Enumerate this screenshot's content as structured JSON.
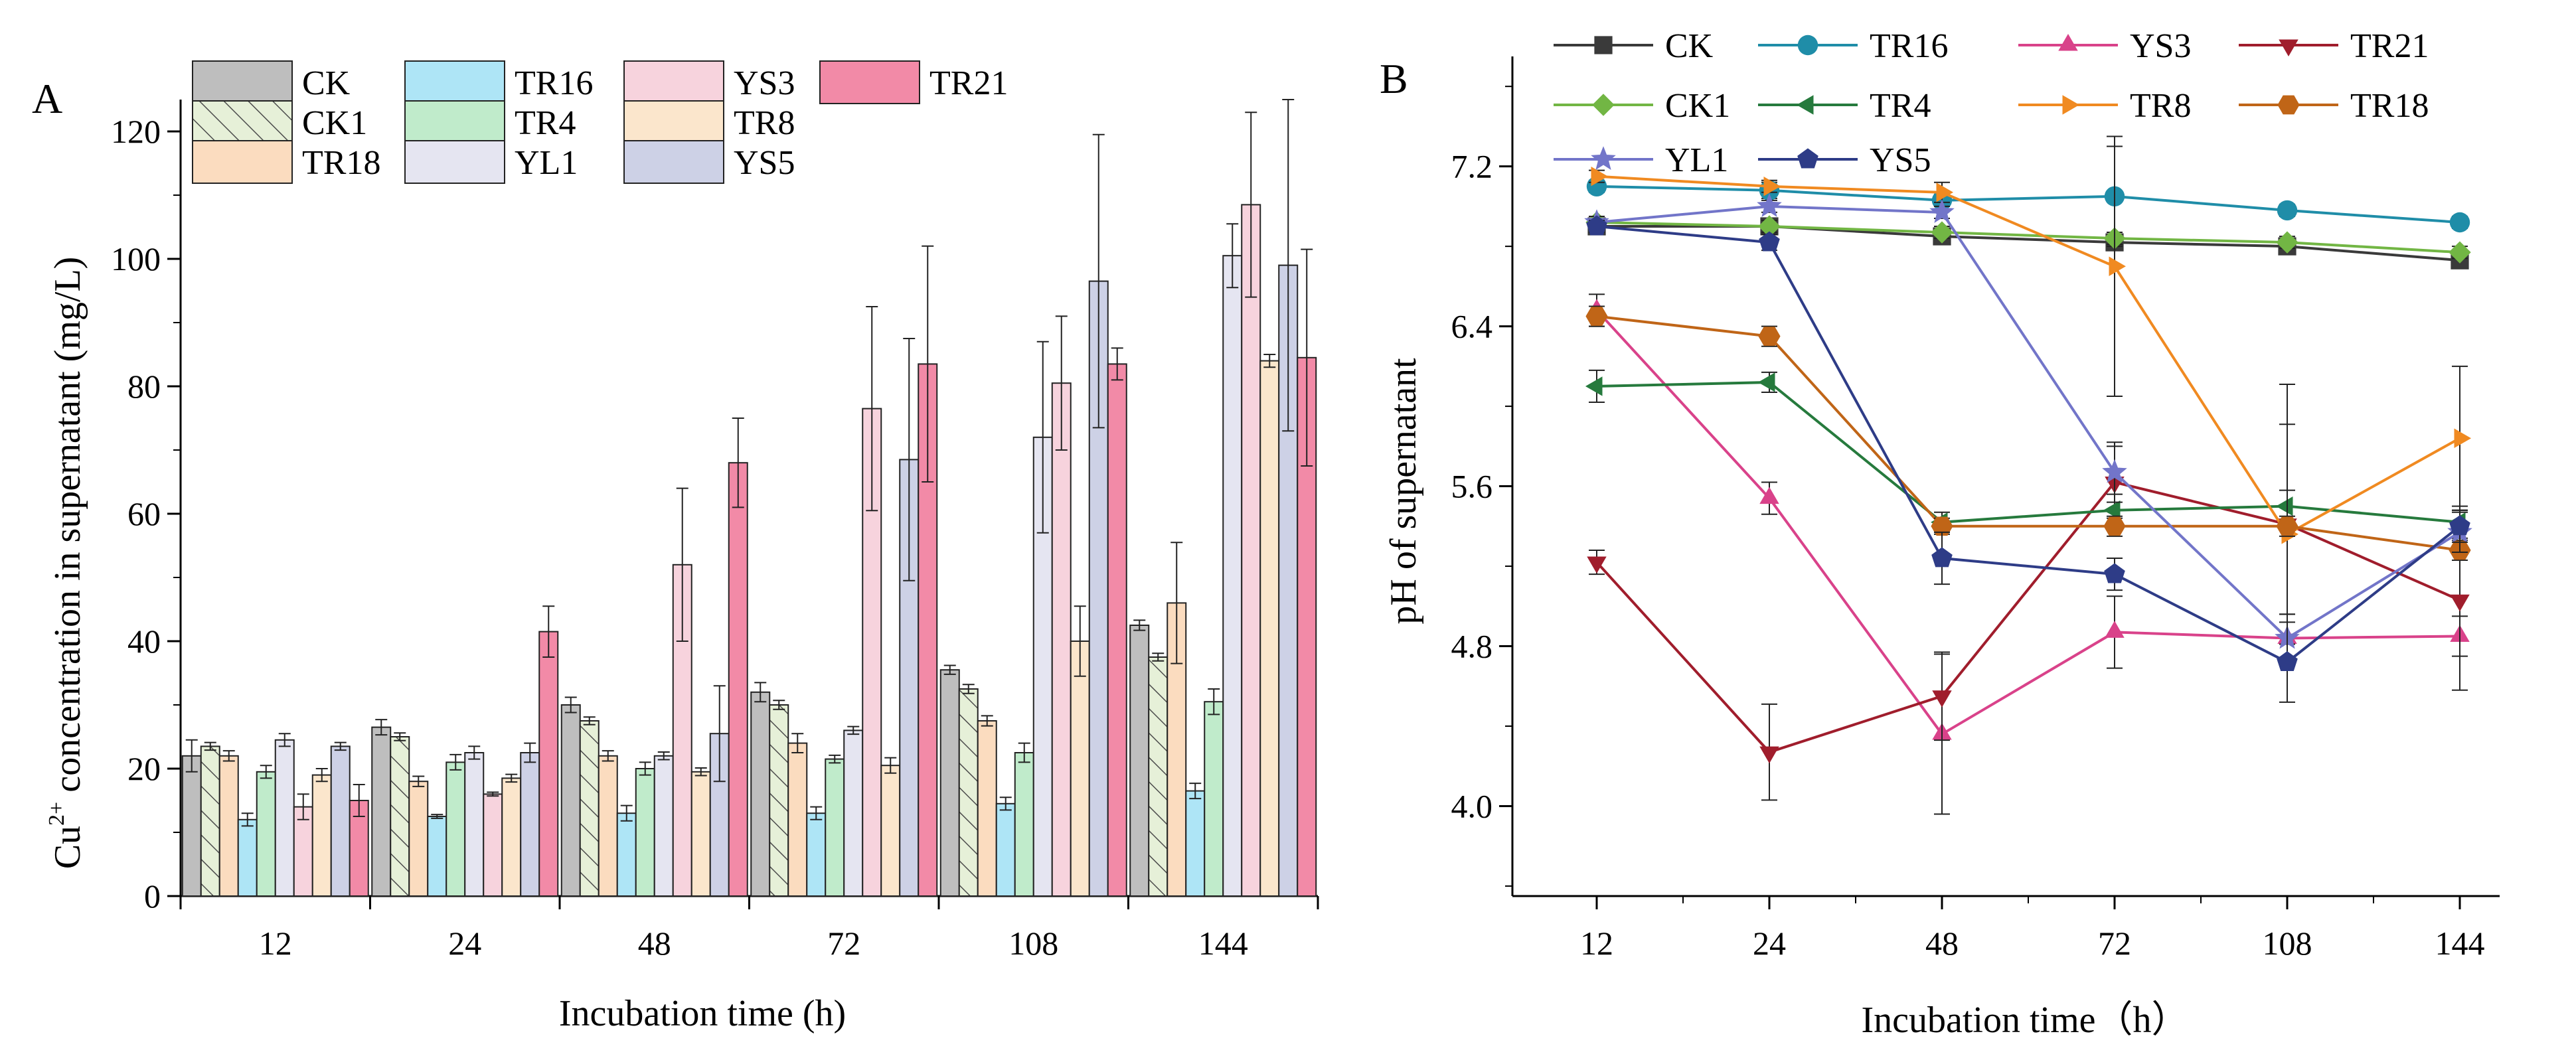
{
  "chart_data": [
    {
      "panel_label": "A",
      "type": "bar",
      "xlabel": "Incubation time (h)",
      "ylabel_parts": [
        "Cu",
        "2+",
        " concentration in supernatant (mg/L)"
      ],
      "ylim": [
        0,
        125
      ],
      "yticks": [
        "0",
        "20",
        "40",
        "60",
        "80",
        "100",
        "120"
      ],
      "categories": [
        "12",
        "24",
        "48",
        "72",
        "108",
        "144"
      ],
      "series": [
        {
          "name": "CK",
          "color": "#bebebe",
          "hatch": false,
          "values": [
            22,
            26.5,
            30,
            32,
            35.5,
            42.5
          ],
          "errors": [
            2.5,
            1.2,
            1.2,
            1.5,
            0.7,
            0.8
          ]
        },
        {
          "name": "CK1",
          "color": "#e6f0d8",
          "hatch": true,
          "values": [
            23.5,
            25,
            27.5,
            30,
            32.5,
            37.5
          ],
          "errors": [
            0.6,
            0.6,
            0.6,
            0.7,
            0.7,
            0.6
          ]
        },
        {
          "name": "TR18",
          "color": "#fbdcbf",
          "hatch": false,
          "values": [
            22,
            18,
            22,
            24,
            27.5,
            46
          ],
          "errors": [
            0.8,
            0.8,
            0.8,
            1.5,
            0.8,
            9.5
          ]
        },
        {
          "name": "TR16",
          "color": "#aee5f6",
          "hatch": false,
          "values": [
            12,
            12.5,
            13,
            13,
            14.5,
            16.5
          ],
          "errors": [
            1,
            0.3,
            1.2,
            1,
            1,
            1.2
          ]
        },
        {
          "name": "TR4",
          "color": "#c0ebcb",
          "hatch": false,
          "values": [
            19.5,
            21,
            20,
            21.5,
            22.5,
            30.5
          ],
          "errors": [
            1,
            1.2,
            1,
            0.6,
            1.5,
            2
          ]
        },
        {
          "name": "YL1",
          "color": "#e5e5f1",
          "hatch": false,
          "values": [
            24.5,
            22.5,
            22,
            26,
            72,
            100.5
          ],
          "errors": [
            1,
            1,
            0.6,
            0.6,
            15,
            5
          ]
        },
        {
          "name": "YS3",
          "color": "#f7d3dd",
          "hatch": false,
          "values": [
            14,
            16,
            52,
            76.5,
            80.5,
            108.5
          ],
          "errors": [
            2,
            0.3,
            12,
            16,
            10.5,
            14.5
          ]
        },
        {
          "name": "TR8",
          "color": "#fbe6cc",
          "hatch": false,
          "values": [
            19,
            18.5,
            19.5,
            20.5,
            40,
            84
          ],
          "errors": [
            1,
            0.6,
            0.6,
            1.2,
            5.5,
            1
          ]
        },
        {
          "name": "YS5",
          "color": "#cdd1e6",
          "hatch": false,
          "values": [
            23.5,
            22.5,
            25.5,
            68.5,
            96.5,
            99
          ],
          "errors": [
            0.6,
            1.5,
            7.5,
            19,
            23,
            26
          ]
        },
        {
          "name": "TR21",
          "color": "#f28aa7",
          "hatch": false,
          "values": [
            15,
            41.5,
            68,
            83.5,
            83.5,
            84.5
          ],
          "errors": [
            2.5,
            4,
            7,
            18.5,
            2.5,
            17
          ]
        }
      ]
    },
    {
      "panel_label": "B",
      "type": "line",
      "xlabel": "Incubation time（h）",
      "ylabel": "pH of supernatant",
      "ylim": [
        3.55,
        7.75
      ],
      "yticks": [
        "4.0",
        "4.8",
        "5.6",
        "6.4",
        "7.2"
      ],
      "categories": [
        "12",
        "24",
        "48",
        "72",
        "108",
        "144"
      ],
      "series": [
        {
          "name": "CK",
          "color": "#3a3a3a",
          "marker": "square",
          "values": [
            6.9,
            6.9,
            6.85,
            6.82,
            6.8,
            6.73
          ],
          "errors": [
            0.03,
            0.03,
            0.04,
            0.03,
            0.03,
            0.03
          ]
        },
        {
          "name": "TR16",
          "color": "#1f8da8",
          "marker": "circle",
          "values": [
            7.1,
            7.08,
            7.03,
            7.05,
            6.98,
            6.92
          ],
          "errors": [
            0.03,
            0.04,
            0.03,
            0.25,
            0.03,
            0.03
          ]
        },
        {
          "name": "YS3",
          "color": "#d9428a",
          "marker": "triangle-up",
          "values": [
            6.48,
            5.54,
            4.36,
            4.87,
            4.84,
            4.85
          ],
          "errors": [
            0.08,
            0.08,
            0.4,
            0.18,
            0.12,
            0.1
          ]
        },
        {
          "name": "TR21",
          "color": "#a01d2c",
          "marker": "triangle-down",
          "values": [
            5.22,
            4.27,
            4.55,
            5.62,
            5.41,
            5.03
          ],
          "errors": [
            0.06,
            0.24,
            0.22,
            0.18,
            0.7,
            0.45
          ]
        },
        {
          "name": "CK1",
          "color": "#72b644",
          "marker": "diamond",
          "values": [
            6.92,
            6.9,
            6.87,
            6.84,
            6.82,
            6.77
          ],
          "errors": [
            0.03,
            0.03,
            0.03,
            0.03,
            0.03,
            0.03
          ]
        },
        {
          "name": "TR4",
          "color": "#267a3d",
          "marker": "triangle-left",
          "values": [
            6.1,
            6.12,
            5.42,
            5.48,
            5.5,
            5.42
          ],
          "errors": [
            0.08,
            0.05,
            0.05,
            0.08,
            0.08,
            0.08
          ]
        },
        {
          "name": "TR8",
          "color": "#f08a21",
          "marker": "triangle-right",
          "values": [
            7.15,
            7.1,
            7.07,
            6.7,
            5.36,
            5.84
          ],
          "errors": [
            0.03,
            0.03,
            0.05,
            0.65,
            0.55,
            0.36
          ]
        },
        {
          "name": "TR18",
          "color": "#c06517",
          "marker": "hexagon",
          "values": [
            6.45,
            6.35,
            5.4,
            5.4,
            5.4,
            5.28
          ],
          "errors": [
            0.05,
            0.05,
            0.04,
            0.05,
            0.05,
            0.05
          ]
        },
        {
          "name": "YL1",
          "color": "#7275c9",
          "marker": "star",
          "values": [
            6.92,
            7.0,
            6.97,
            5.67,
            4.84,
            5.37
          ],
          "errors": [
            0.03,
            0.03,
            0.03,
            0.15,
            0.12,
            0.1
          ]
        },
        {
          "name": "YS5",
          "color": "#2e3c87",
          "marker": "pentagon",
          "values": [
            6.9,
            6.82,
            5.24,
            5.16,
            4.72,
            5.4
          ],
          "errors": [
            0.03,
            0.04,
            0.13,
            0.08,
            0.2,
            0.08
          ]
        }
      ]
    }
  ]
}
